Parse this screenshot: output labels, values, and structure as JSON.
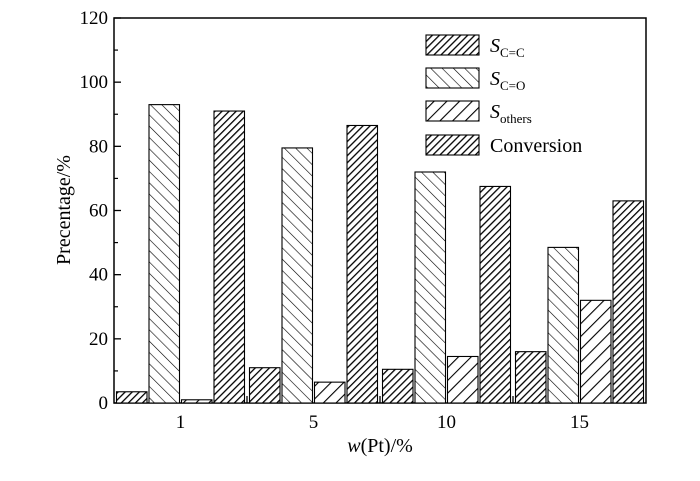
{
  "chart_data": {
    "type": "bar",
    "categories": [
      "1",
      "5",
      "10",
      "15"
    ],
    "series": [
      {
        "name": "S",
        "subscript": "C=C",
        "values": [
          3.5,
          11,
          10.5,
          16
        ],
        "pattern": "dense"
      },
      {
        "name": "S",
        "subscript": "C=O",
        "values": [
          93,
          79.5,
          72,
          48.5
        ],
        "pattern": "backslash"
      },
      {
        "name": "S",
        "subscript": "others",
        "values": [
          1,
          6.5,
          14.5,
          32
        ],
        "pattern": "slash"
      },
      {
        "name": "Conversion",
        "subscript": "",
        "values": [
          91,
          86.5,
          67.5,
          63
        ],
        "pattern": "dense"
      }
    ],
    "xlabel_italic": "w",
    "xlabel_rest": "(Pt)/%",
    "ylabel": "Precentage/%",
    "ylim": [
      0,
      120
    ],
    "yticks": [
      "0",
      "20",
      "40",
      "60",
      "80",
      "100",
      "120"
    ],
    "grid": false,
    "legend_position": "top-right"
  }
}
